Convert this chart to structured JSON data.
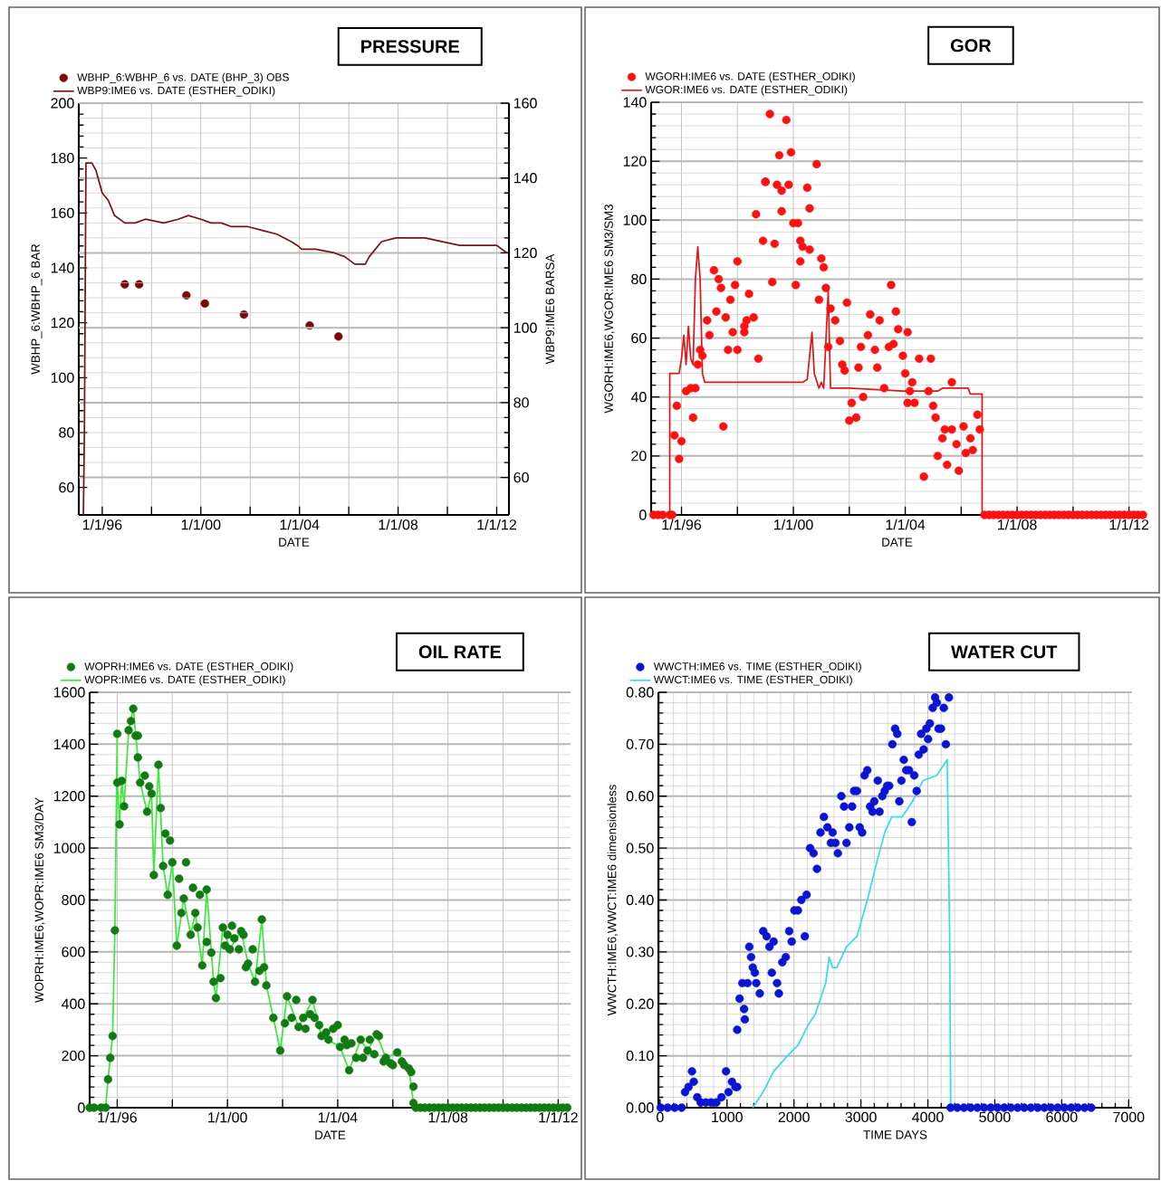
{
  "chart_data": [
    {
      "type": "line",
      "title": "PRESSURE",
      "xlabel": "DATE",
      "ylabel": "WBHP_6:WBHP_6    BAR",
      "y2label": "WBP9:IME6    BARSA",
      "xlim": [
        "1995-01-19",
        "2012-07-01"
      ],
      "xticks": [
        {
          "value": "1996-01-01",
          "label": "1/1/96"
        },
        {
          "value": "1998-01-01",
          "label": null
        },
        {
          "value": "2000-01-01",
          "label": "1/1/00"
        },
        {
          "value": "2002-01-01",
          "label": null
        },
        {
          "value": "2004-01-01",
          "label": "1/1/04"
        },
        {
          "value": "2006-01-01",
          "label": null
        },
        {
          "value": "2008-01-01",
          "label": "1/1/08"
        },
        {
          "value": "2010-01-01",
          "label": null
        },
        {
          "value": "2012-01-01",
          "label": "1/1/12"
        }
      ],
      "ylim": [
        50,
        200
      ],
      "yticks": [
        60,
        80,
        100,
        120,
        140,
        160,
        180,
        200
      ],
      "y2lim": [
        50,
        160
      ],
      "y2ticks": [
        60,
        80,
        100,
        120,
        140,
        160
      ],
      "grid": true,
      "legend": "top left",
      "series": [
        {
          "name": "WBHP_6:WBHP_6 vs. DATE (BHP_3) OBS",
          "type": "scatter",
          "marker": "circle",
          "color": "#7a0a0a",
          "x": [
            "1996-12",
            "1997-07",
            "1999-06",
            "2000-03",
            "2001-10",
            "2004-06",
            "2005-08"
          ],
          "values": [
            134,
            134,
            130,
            127,
            123,
            119,
            115
          ]
        },
        {
          "name": "WBP9:IME6  vs.  DATE (ESTHER_ODIKI)",
          "axis": "y2",
          "color": "#7a1414",
          "x": [
            "1995-03-28",
            "1995-04-12",
            "1995-05-05",
            "1995-08",
            "1995-10",
            "1996-01",
            "1996-04",
            "1996-07",
            "1996-12",
            "1997-05",
            "1997-10",
            "1998-07",
            "1999-02",
            "1999-07",
            "2000-01",
            "2000-06",
            "2000-11",
            "2001-04",
            "2001-12",
            "2002-07",
            "2003-02",
            "2003-09",
            "2003-12",
            "2004-02",
            "2004-09",
            "2005-06",
            "2005-11",
            "2006-04",
            "2006-09",
            "2006-11",
            "2007-05",
            "2007-12",
            "2009-02",
            "2010-07",
            "2012-01",
            "2012-06"
          ],
          "values": [
            50,
            72,
            144,
            144,
            142,
            136,
            134,
            130,
            128,
            128,
            129,
            128,
            129,
            130,
            129,
            128,
            128,
            127,
            127,
            126,
            125,
            123,
            122,
            121,
            121,
            120,
            119,
            117,
            117,
            119,
            123,
            124,
            124,
            122,
            122,
            120
          ]
        }
      ]
    },
    {
      "type": "line",
      "title": "GOR",
      "xlabel": "DATE",
      "ylabel": "WGORH:IME6,WGOR:IME6    SM3/SM3",
      "xlim": [
        "1994-12-01",
        "2012-07-01"
      ],
      "xticks": [
        {
          "value": "1996-01-01",
          "label": "1/1/96"
        },
        {
          "value": "1998-01-01",
          "label": null
        },
        {
          "value": "2000-01-01",
          "label": "1/1/00"
        },
        {
          "value": "2002-01-01",
          "label": null
        },
        {
          "value": "2004-01-01",
          "label": "1/1/04"
        },
        {
          "value": "2006-01-01",
          "label": null
        },
        {
          "value": "2008-01-01",
          "label": "1/1/08"
        },
        {
          "value": "2010-01-01",
          "label": null
        },
        {
          "value": "2012-01-01",
          "label": "1/1/12"
        }
      ],
      "ylim": [
        0,
        140
      ],
      "yticks": [
        0,
        20,
        40,
        60,
        80,
        100,
        120,
        140
      ],
      "grid": true,
      "legend": "top left",
      "series": [
        {
          "name": "WGORH:IME6  vs.  DATE (ESTHER_ODIKI)",
          "type": "scatter",
          "marker": "circle",
          "color": "#ff1010",
          "x": [
            "1995-01",
            "1995-03",
            "1995-05",
            "1995-08",
            "1995-09",
            "1995-11",
            "1995-10",
            "1996-01",
            "1995-12",
            "1996-03",
            "1996-05",
            "1996-06",
            "1996-07",
            "1996-08",
            "1996-10",
            "1996-09",
            "1996-12",
            "1997-01",
            "1997-03",
            "1997-05",
            "1997-06",
            "1997-04",
            "1997-07",
            "1997-08",
            "1997-09",
            "1997-10",
            "1997-11",
            "1997-12",
            "1998-01",
            "1998-01",
            "1998-04",
            "1998-04",
            "1998-05",
            "1998-06",
            "1998-08",
            "1998-09",
            "1998-10",
            "1998-12",
            "1999-01",
            "1999-01",
            "1999-03",
            "1999-04",
            "1999-05",
            "1999-06",
            "1999-07",
            "1999-08",
            "1999-08",
            "1999-10",
            "1999-11",
            "1999-12",
            "2000-01",
            "2000-02",
            "2000-03",
            "2000-04",
            "2000-04",
            "2000-05",
            "2000-07",
            "2000-08",
            "2000-08",
            "2000-11",
            "2000-12",
            "2001-01",
            "2001-02",
            "2001-03",
            "2001-04",
            "2001-05",
            "2001-07",
            "2001-09",
            "2001-10",
            "2001-11",
            "2001-12",
            "2002-01",
            "2002-02",
            "2002-04",
            "2002-05",
            "2002-06",
            "2002-07",
            "2002-09",
            "2002-10",
            "2002-12",
            "2003-01",
            "2003-02",
            "2003-04",
            "2003-06",
            "2003-07",
            "2003-08",
            "2003-09",
            "2003-10",
            "2003-12",
            "2004-01",
            "2004-02",
            "2004-02",
            "2004-03",
            "2004-04",
            "2004-05",
            "2004-07",
            "2004-09",
            "2004-11",
            "2004-12",
            "2005-01",
            "2005-02",
            "2005-03",
            "2005-05",
            "2005-06",
            "2005-07",
            "2005-09",
            "2005-09",
            "2005-11",
            "2005-12",
            "2006-02",
            "2006-03",
            "2006-05",
            "2006-06",
            "2006-08",
            "2006-09",
            "2006-11",
            "2007-01",
            "2007-03",
            "2007-05",
            "2007-07",
            "2007-09",
            "2007-11",
            "2008-01",
            "2008-03",
            "2008-05",
            "2008-07",
            "2008-09",
            "2008-11",
            "2009-01",
            "2009-03",
            "2009-05",
            "2009-07",
            "2009-09",
            "2009-11",
            "2010-01",
            "2010-03",
            "2010-05",
            "2010-07",
            "2010-09",
            "2010-11",
            "2011-01",
            "2011-03",
            "2011-05",
            "2011-07",
            "2011-09",
            "2011-11",
            "2012-01",
            "2012-03",
            "2012-05",
            "2012-07"
          ],
          "values": [
            0,
            0,
            0,
            0,
            0,
            37,
            27,
            25,
            19,
            42,
            43,
            33,
            43,
            51,
            54,
            56,
            66,
            61,
            83,
            80,
            77,
            69,
            30,
            67,
            56,
            73,
            62,
            78,
            56,
            86,
            62,
            64,
            66,
            75,
            67,
            102,
            53,
            93,
            113,
            113,
            136,
            79,
            92,
            112,
            122,
            103,
            110,
            134,
            112,
            123,
            99,
            78,
            99,
            93,
            86,
            91,
            111,
            104,
            90,
            119,
            73,
            87,
            84,
            77,
            57,
            70,
            66,
            59,
            51,
            49,
            72,
            32,
            38,
            33,
            50,
            57,
            40,
            61,
            68,
            56,
            50,
            66,
            43,
            57,
            78,
            58,
            69,
            63,
            54,
            48,
            38,
            62,
            42,
            45,
            38,
            53,
            13,
            42,
            53,
            37,
            33,
            20,
            26,
            29,
            17,
            45,
            29,
            24,
            15,
            30,
            21,
            26,
            22,
            34,
            29,
            0,
            0,
            0,
            0,
            0,
            0,
            0,
            0,
            0,
            0,
            0,
            0,
            0,
            0,
            0,
            0,
            0,
            0,
            0,
            0,
            0,
            0,
            0,
            0,
            0,
            0,
            0,
            0,
            0,
            0,
            0,
            0,
            0,
            0,
            0
          ]
        },
        {
          "name": "WGOR:IME6  vs.  DATE (ESTHER_ODIKI)",
          "color": "#e01818",
          "x": [
            "1994-12",
            "1995-08",
            "1995-08",
            "1995-12",
            "1996-01",
            "1996-02",
            "1996-03",
            "1996-04",
            "1996-05",
            "1996-06",
            "1996-07",
            "1996-08",
            "1996-09",
            "1996-10",
            "1996-11",
            "1999-01",
            "2000-05",
            "2000-07",
            "2000-09",
            "2000-10",
            "2000-12",
            "2001-01",
            "2001-02",
            "2001-04",
            "2001-05",
            "2002-01",
            "2003-12",
            "2005-03",
            "2005-05",
            "2006-02",
            "2006-04",
            "2006-05",
            "2006-10",
            "2006-10",
            "2012-07"
          ],
          "values": [
            0,
            0,
            48,
            48,
            53,
            61,
            51,
            64,
            53,
            51,
            80,
            91,
            80,
            48,
            45,
            45,
            45,
            46,
            62,
            48,
            43,
            45,
            43,
            76,
            43,
            43,
            42,
            42,
            43,
            43,
            43,
            41,
            41,
            0,
            0
          ]
        }
      ]
    },
    {
      "type": "line",
      "title": "OIL RATE",
      "xlabel": "DATE",
      "ylabel": "WOPRH:IME6,WOPR:IME6    SM3/DAY",
      "xlim": [
        "1995-01-01",
        "2012-06-13"
      ],
      "xticks": [
        {
          "value": "1996-01-01",
          "label": "1/1/96"
        },
        {
          "value": "1998-01-01",
          "label": null
        },
        {
          "value": "2000-01-01",
          "label": "1/1/00"
        },
        {
          "value": "2002-01-01",
          "label": null
        },
        {
          "value": "2004-01-01",
          "label": "1/1/04"
        },
        {
          "value": "2006-01-01",
          "label": null
        },
        {
          "value": "2008-01-01",
          "label": "1/1/08"
        },
        {
          "value": "2010-01-01",
          "label": null
        },
        {
          "value": "2012-01-01",
          "label": "1/1/12"
        }
      ],
      "ylim": [
        0,
        1600
      ],
      "yticks": [
        0,
        200,
        400,
        600,
        800,
        1000,
        1200,
        1400,
        1600
      ],
      "grid": true,
      "legend": "top left",
      "series": [
        {
          "name": "WOPRH:IME6  vs.  DATE (ESTHER_ODIKI)",
          "type": "scatter",
          "marker": "circle",
          "color": "#127a12",
          "x": [
            "1995-01",
            "1995-03",
            "1995-06",
            "1995-08",
            "1995-09",
            "1995-10",
            "1995-11",
            "1995-12",
            "1996-01",
            "1996-01",
            "1996-02",
            "1996-03",
            "1996-04",
            "1996-06",
            "1996-07",
            "1996-08",
            "1996-09",
            "1996-10",
            "1996-10",
            "1996-11",
            "1997-01",
            "1997-02",
            "1997-03",
            "1997-04",
            "1997-05",
            "1997-07",
            "1997-08",
            "1997-09",
            "1997-10",
            "1997-11",
            "1997-12",
            "1998-01",
            "1998-03",
            "1998-04",
            "1998-05",
            "1998-06",
            "1998-07",
            "1998-09",
            "1998-10",
            "1998-11",
            "1998-12",
            "1999-01",
            "1999-02",
            "1999-04",
            "1999-04",
            "1999-06",
            "1999-07",
            "1999-08",
            "1999-10",
            "1999-11",
            "1999-12",
            "2000-01",
            "2000-02",
            "2000-03",
            "2000-04",
            "2000-06",
            "2000-07",
            "2000-08",
            "2000-09",
            "2000-10",
            "2000-12",
            "2001-01",
            "2001-03",
            "2001-04",
            "2001-05",
            "2001-06",
            "2001-09",
            "2001-12",
            "2002-02",
            "2002-03",
            "2002-05",
            "2002-07",
            "2002-08",
            "2002-10",
            "2002-11",
            "2003-01",
            "2003-02",
            "2003-03",
            "2003-05",
            "2003-06",
            "2003-08",
            "2003-09",
            "2003-11",
            "2004-01",
            "2004-02",
            "2004-04",
            "2004-05",
            "2004-06",
            "2004-07",
            "2004-09",
            "2004-11",
            "2004-12",
            "2005-02",
            "2005-03",
            "2005-05",
            "2005-06",
            "2005-07",
            "2005-09",
            "2005-10",
            "2005-12",
            "2006-01",
            "2006-03",
            "2006-05",
            "2006-06",
            "2006-08",
            "2006-09",
            "2006-10",
            "2006-10",
            "2006-11",
            "2007-01",
            "2007-03",
            "2007-05",
            "2007-07",
            "2007-09",
            "2007-11",
            "2008-01",
            "2008-03",
            "2008-05",
            "2008-07",
            "2008-09",
            "2008-11",
            "2009-01",
            "2009-03",
            "2009-05",
            "2009-07",
            "2009-09",
            "2009-11",
            "2010-01",
            "2010-03",
            "2010-05",
            "2010-07",
            "2010-09",
            "2010-11",
            "2011-01",
            "2011-03",
            "2011-05",
            "2011-07",
            "2011-09",
            "2011-11",
            "2012-01",
            "2012-03",
            "2012-05"
          ],
          "values": [
            0,
            0,
            0,
            0,
            109,
            192,
            276,
            683,
            1440,
            1252,
            1091,
            1259,
            1161,
            1454,
            1489,
            1537,
            1433,
            1349,
            1433,
            1252,
            1279,
            1140,
            1238,
            1210,
            896,
            1321,
            1154,
            931,
            1056,
            820,
            1029,
            945,
            624,
            882,
            750,
            806,
            945,
            666,
            847,
            750,
            694,
            820,
            548,
            840,
            638,
            597,
            485,
            422,
            499,
            694,
            624,
            666,
            610,
            701,
            652,
            610,
            680,
            666,
            541,
            555,
            610,
            485,
            527,
            725,
            541,
            471,
            346,
            220,
            325,
            429,
            346,
            415,
            311,
            346,
            304,
            360,
            415,
            346,
            318,
            276,
            290,
            262,
            304,
            318,
            234,
            262,
            241,
            144,
            248,
            192,
            262,
            192,
            220,
            262,
            206,
            283,
            276,
            178,
            192,
            171,
            164,
            213,
            178,
            164,
            151,
            137,
            81,
            18,
            0,
            0,
            0,
            0,
            0,
            0,
            0,
            0,
            0,
            0,
            0,
            0,
            0,
            0,
            0,
            0,
            0,
            0,
            0,
            0,
            0,
            0,
            0,
            0,
            0,
            0,
            0,
            0,
            0,
            0,
            0,
            0,
            0,
            0
          ]
        },
        {
          "name": "WOPR:IME6  vs.  DATE (ESTHER_ODIKI)",
          "color": "#3ee83e",
          "x": [
            "1995-01",
            "1995-08",
            "1995-09",
            "1995-10",
            "1995-11",
            "1995-12",
            "1996-01",
            "1996-01",
            "1996-02",
            "1996-03",
            "1996-04",
            "1996-06",
            "1996-08",
            "1996-10",
            "1996-11",
            "1997-02",
            "1997-04",
            "1997-05",
            "1997-07",
            "1997-09",
            "1997-11",
            "1998-01",
            "1998-03",
            "1998-06",
            "1998-09",
            "1998-11",
            "1999-02",
            "1999-04",
            "1999-07",
            "1999-08",
            "1999-11",
            "2000-02",
            "2000-07",
            "2000-10",
            "2001-01",
            "2001-04",
            "2001-06",
            "2001-09",
            "2001-12",
            "2002-03",
            "2002-08",
            "2003-02",
            "2003-06",
            "2004-02",
            "2004-06",
            "2004-11",
            "2005-02",
            "2005-06",
            "2005-10",
            "2006-03",
            "2006-08",
            "2006-10",
            "2006-11",
            "2012-06"
          ],
          "values": [
            0,
            0,
            109,
            192,
            276,
            683,
            1440,
            1252,
            1091,
            1259,
            1161,
            1454,
            1537,
            1349,
            1252,
            1140,
            1210,
            896,
            1321,
            931,
            820,
            945,
            624,
            806,
            666,
            750,
            548,
            840,
            485,
            422,
            694,
            610,
            680,
            555,
            485,
            725,
            471,
            346,
            220,
            429,
            311,
            415,
            276,
            234,
            144,
            262,
            220,
            283,
            192,
            213,
            151,
            18,
            0,
            0
          ]
        }
      ]
    },
    {
      "type": "line",
      "title": "WATER CUT",
      "xlabel": "TIME    DAYS",
      "ylabel": "WWCTH:IME6,WWCT:IME6    dimensionless",
      "xlim": [
        -25,
        7050
      ],
      "xticks": [
        0,
        1000,
        2000,
        3000,
        4000,
        5000,
        6000,
        7000
      ],
      "ylim": [
        0,
        0.8
      ],
      "yticks": [
        {
          "value": 0,
          "label": "0.00"
        },
        {
          "value": 0.1,
          "label": "0.10"
        },
        {
          "value": 0.2,
          "label": "0.20"
        },
        {
          "value": 0.3,
          "label": "0.30"
        },
        {
          "value": 0.4,
          "label": "0.40"
        },
        {
          "value": 0.5,
          "label": "0.50"
        },
        {
          "value": 0.6,
          "label": "0.60"
        },
        {
          "value": 0.7,
          "label": "0.70"
        },
        {
          "value": 0.8,
          "label": "0.80"
        }
      ],
      "grid": true,
      "legend": "top left",
      "series": [
        {
          "name": "WWCTH:IME6  vs.  TIME (ESTHER_ODIKI)",
          "type": "scatter",
          "marker": "circle",
          "color": "#0a14d2",
          "x": [
            10,
            114,
            218,
            322,
            373,
            425,
            477,
            503,
            555,
            607,
            685,
            762,
            840,
            918,
            985,
            1022,
            1074,
            1126,
            1152,
            1152,
            1188,
            1229,
            1255,
            1266,
            1307,
            1333,
            1359,
            1385,
            1416,
            1437,
            1489,
            1541,
            1592,
            1634,
            1670,
            1696,
            1748,
            1774,
            1826,
            1878,
            1929,
            1966,
            2007,
            2059,
            2111,
            2163,
            2189,
            2241,
            2293,
            2344,
            2396,
            2448,
            2500,
            2552,
            2578,
            2620,
            2656,
            2708,
            2749,
            2785,
            2827,
            2868,
            2899,
            2941,
            2982,
            3019,
            3055,
            3096,
            3138,
            3174,
            3200,
            3252,
            3278,
            3320,
            3356,
            3392,
            3423,
            3470,
            3511,
            3543,
            3574,
            3605,
            3641,
            3677,
            3719,
            3760,
            3797,
            3833,
            3864,
            3900,
            3937,
            3978,
            4004,
            4030,
            4072,
            4108,
            4134,
            4160,
            4196,
            4238,
            4269,
            4315,
            4340,
            4440,
            4540,
            4640,
            4740,
            4840,
            4940,
            5040,
            5140,
            5240,
            5340,
            5440,
            5540,
            5640,
            5740,
            5840,
            5940,
            6040,
            6140,
            6240,
            6340,
            6440
          ],
          "values": [
            0,
            0,
            0,
            0,
            0.03,
            0.04,
            0.07,
            0.05,
            0.02,
            0.01,
            0.01,
            0.01,
            0.01,
            0.02,
            0.07,
            0.03,
            0.05,
            0.04,
            0.04,
            0.15,
            0.21,
            0.24,
            0.19,
            0.17,
            0.24,
            0.31,
            0.29,
            0.27,
            0.26,
            0.24,
            0.22,
            0.34,
            0.33,
            0.31,
            0.26,
            0.32,
            0.24,
            0.22,
            0.28,
            0.29,
            0.34,
            0.32,
            0.38,
            0.38,
            0.4,
            0.33,
            0.41,
            0.5,
            0.49,
            0.46,
            0.53,
            0.56,
            0.54,
            0.51,
            0.53,
            0.51,
            0.49,
            0.6,
            0.58,
            0.51,
            0.54,
            0.58,
            0.61,
            0.61,
            0.54,
            0.53,
            0.64,
            0.65,
            0.58,
            0.57,
            0.59,
            0.63,
            0.57,
            0.6,
            0.61,
            0.62,
            0.62,
            0.7,
            0.73,
            0.72,
            0.59,
            0.63,
            0.67,
            0.65,
            0.65,
            0.55,
            0.64,
            0.61,
            0.68,
            0.72,
            0.69,
            0.73,
            0.71,
            0.74,
            0.77,
            0.79,
            0.78,
            0.73,
            0.73,
            0.77,
            0.7,
            0.79,
            0,
            0,
            0,
            0,
            0,
            0,
            0,
            0,
            0,
            0,
            0,
            0,
            0,
            0,
            0,
            0,
            0,
            0,
            0,
            0,
            0,
            0
          ]
        },
        {
          "name": "WWCT:IME6  vs.  TIME (ESTHER_ODIKI)",
          "color": "#33dfe6",
          "x": [
            1385,
            1540,
            1696,
            1904,
            2059,
            2215,
            2318,
            2474,
            2526,
            2578,
            2640,
            2785,
            2941,
            3096,
            3252,
            3356,
            3460,
            3615,
            3771,
            3926,
            4134,
            4289,
            4326,
            4341
          ],
          "values": [
            0,
            0.03,
            0.07,
            0.1,
            0.12,
            0.16,
            0.18,
            0.24,
            0.29,
            0.27,
            0.27,
            0.31,
            0.33,
            0.4,
            0.48,
            0.53,
            0.56,
            0.56,
            0.59,
            0.63,
            0.64,
            0.67,
            0.33,
            0
          ]
        }
      ]
    }
  ]
}
